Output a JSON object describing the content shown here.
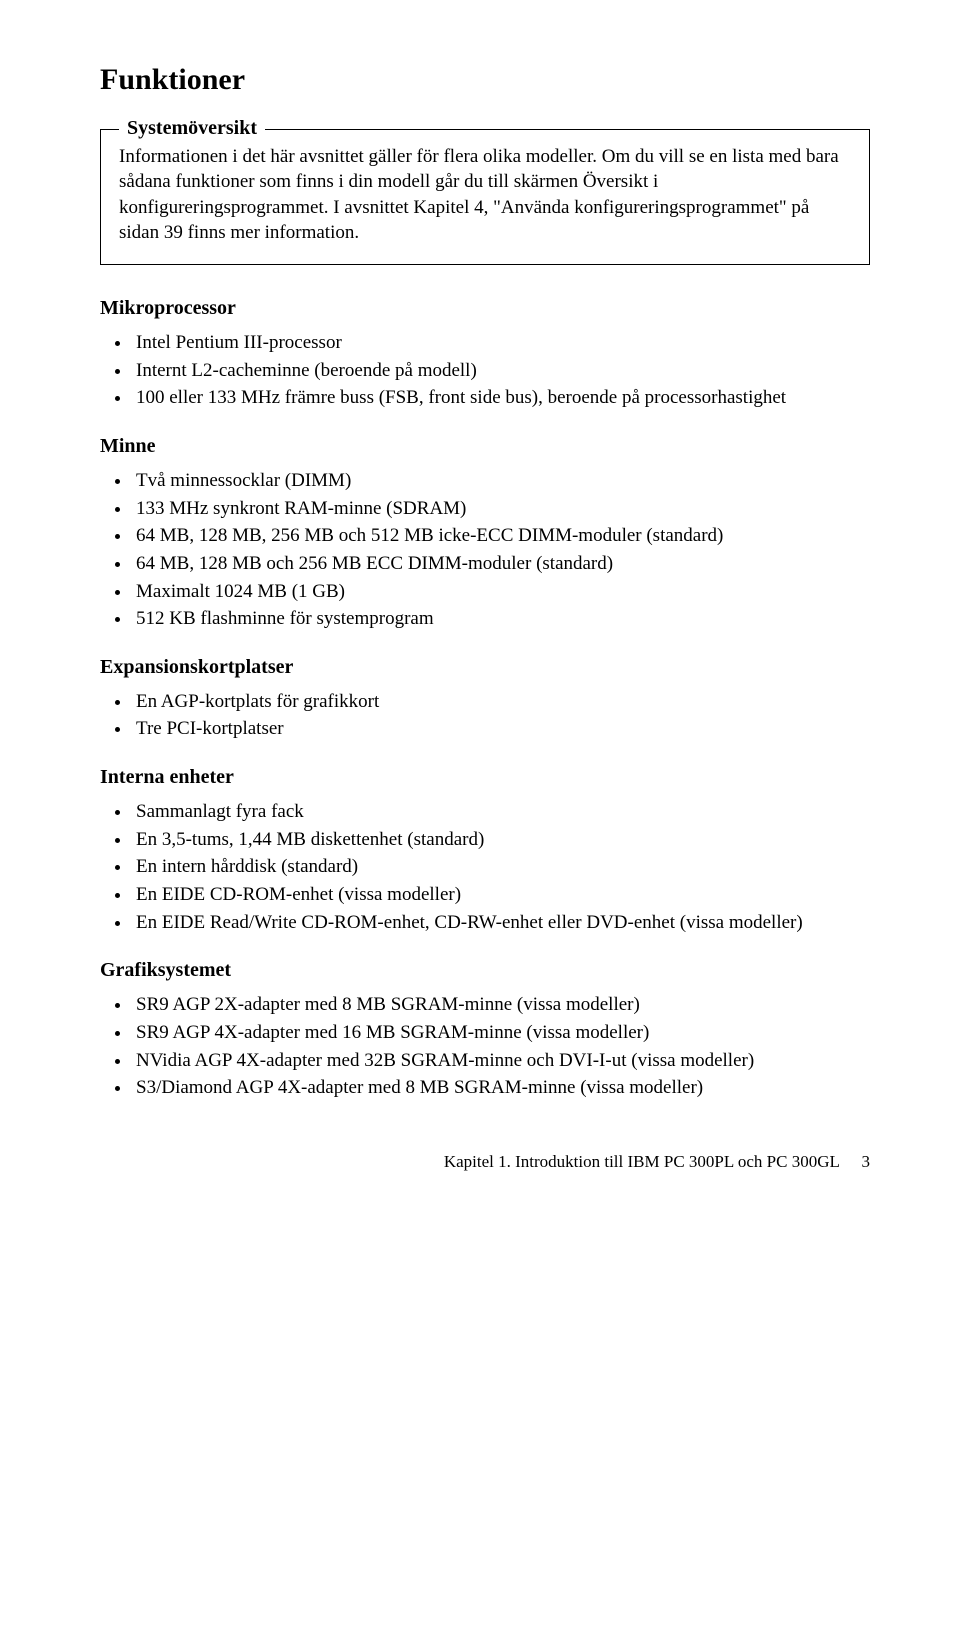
{
  "title": "Funktioner",
  "overview": {
    "heading": "Systemöversikt",
    "body": "Informationen i det här avsnittet gäller för flera olika modeller. Om du vill se en lista med bara sådana funktioner som finns i din modell går du till skärmen Översikt i konfigureringsprogrammet. I avsnittet Kapitel 4, \"Använda konfigureringsprogrammet\" på sidan 39 finns mer information."
  },
  "sections": [
    {
      "heading": "Mikroprocessor",
      "items": [
        "Intel Pentium III-processor",
        "Internt L2-cacheminne (beroende på modell)",
        "100 eller 133 MHz främre buss (FSB, front side bus), beroende på processorhastighet"
      ]
    },
    {
      "heading": "Minne",
      "items": [
        "Två minnessocklar (DIMM)",
        "133 MHz synkront RAM-minne (SDRAM)",
        "64 MB, 128 MB, 256 MB och 512 MB icke-ECC DIMM-moduler (standard)",
        "64 MB, 128 MB och 256 MB ECC DIMM-moduler (standard)",
        "Maximalt 1024 MB (1 GB)",
        "512 KB flashminne för systemprogram"
      ]
    },
    {
      "heading": "Expansionskortplatser",
      "items": [
        "En AGP-kortplats för grafikkort",
        "Tre PCI-kortplatser"
      ]
    },
    {
      "heading": "Interna enheter",
      "items": [
        "Sammanlagt fyra fack",
        "En 3,5-tums, 1,44 MB diskettenhet (standard)",
        "En intern hårddisk (standard)",
        "En EIDE CD-ROM-enhet (vissa modeller)",
        "En EIDE Read/Write CD-ROM-enhet, CD-RW-enhet eller DVD-enhet (vissa modeller)"
      ]
    },
    {
      "heading": "Grafiksystemet",
      "items": [
        "SR9 AGP 2X-adapter med 8 MB SGRAM-minne (vissa modeller)",
        "SR9 AGP 4X-adapter med 16 MB SGRAM-minne (vissa modeller)",
        "NVidia AGP 4X-adapter med 32B SGRAM-minne och DVI-I-ut (vissa modeller)",
        "S3/Diamond AGP 4X-adapter med 8 MB SGRAM-minne (vissa modeller)"
      ]
    }
  ],
  "footer": {
    "text": "Kapitel 1.   Introduktion till IBM PC 300PL och PC 300GL",
    "page": "3"
  }
}
